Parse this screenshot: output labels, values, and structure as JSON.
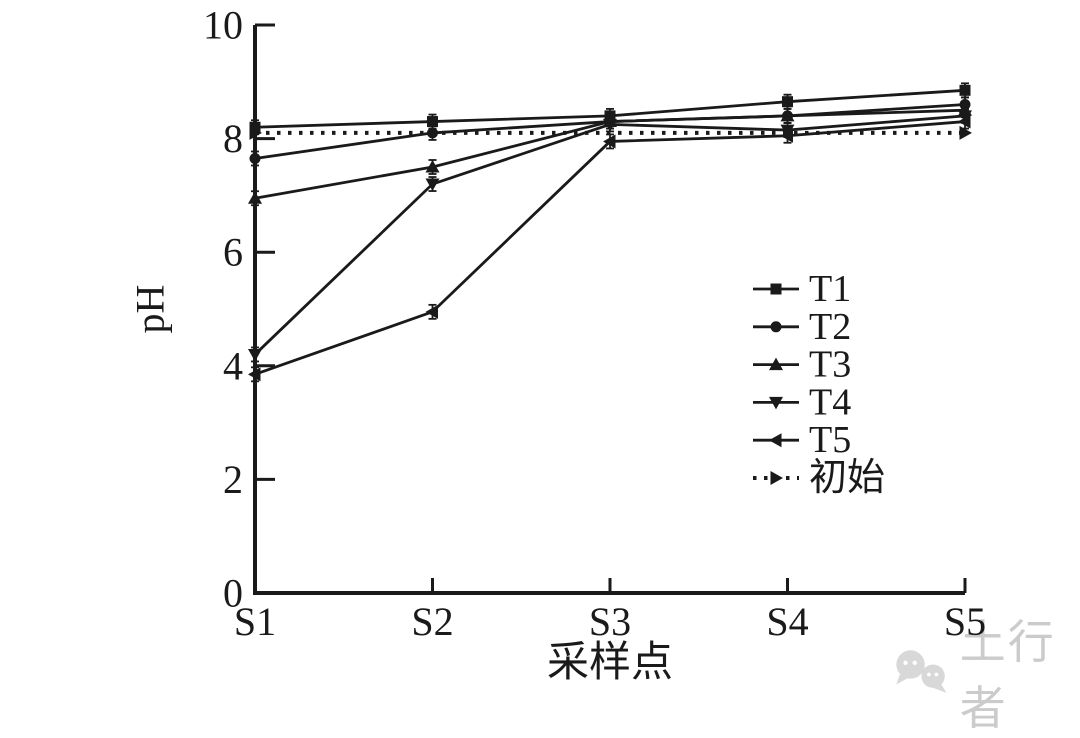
{
  "figure": {
    "background": "#ffffff",
    "ink_color": "#1a1a1a"
  },
  "chart_data": {
    "type": "line",
    "title": "",
    "xlabel": "采样点",
    "ylabel": "pH",
    "categories": [
      "S1",
      "S2",
      "S3",
      "S4",
      "S5"
    ],
    "ylim": [
      0,
      10
    ],
    "yticks": [
      0,
      2,
      4,
      6,
      8,
      10
    ],
    "grid": false,
    "legend_position": "inside-right",
    "series": [
      {
        "name": "T1",
        "marker": "square",
        "line": "solid",
        "values": [
          8.2,
          8.3,
          8.4,
          8.65,
          8.85
        ]
      },
      {
        "name": "T2",
        "marker": "circle",
        "line": "solid",
        "values": [
          7.65,
          8.1,
          8.3,
          8.4,
          8.6
        ]
      },
      {
        "name": "T3",
        "marker": "triangle-up",
        "line": "solid",
        "values": [
          6.95,
          7.5,
          8.3,
          8.4,
          8.5
        ]
      },
      {
        "name": "T4",
        "marker": "triangle-down",
        "line": "solid",
        "values": [
          4.2,
          7.2,
          8.25,
          8.15,
          8.4
        ]
      },
      {
        "name": "T5",
        "marker": "triangle-left",
        "line": "solid",
        "values": [
          3.85,
          4.95,
          7.95,
          8.05,
          8.3
        ]
      },
      {
        "name": "初始",
        "marker": "triangle-right",
        "line": "dashed",
        "values": [
          8.1,
          8.1,
          8.1,
          8.1,
          8.1
        ]
      }
    ]
  },
  "watermark": {
    "text": "土行者",
    "icon": "wechat-bubbles-icon",
    "color": "#cbcbcb"
  }
}
